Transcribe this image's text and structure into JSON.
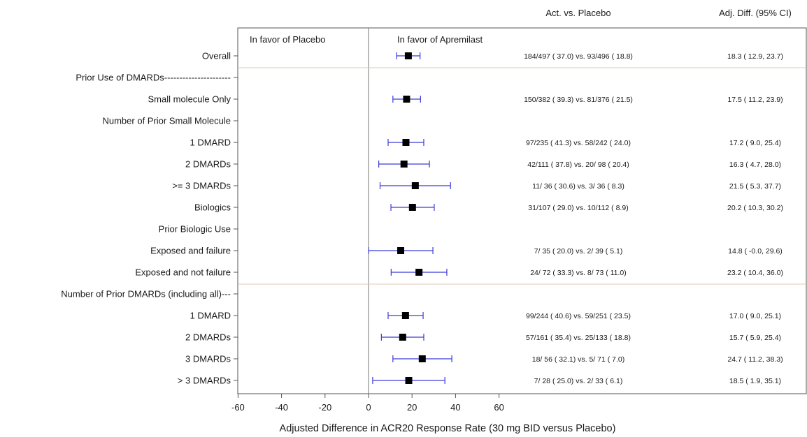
{
  "chart_data": {
    "type": "forest",
    "header_treatment_text": "Act. vs. Placebo",
    "header_diff_text": "Adj. Diff. (95% CI)",
    "favor_left": "In favor of Placebo",
    "favor_right": "In favor of Apremilast",
    "xlabel": "Adjusted Difference in ACR20 Response Rate (30 mg BID versus Placebo)",
    "xlim": [
      -63,
      70
    ],
    "xticks": [
      -60,
      -40,
      -20,
      0,
      20,
      40,
      60
    ],
    "xtick_labels": [
      "-60",
      "-40",
      "-20",
      "0",
      "20",
      "40",
      "60"
    ],
    "reference_line": 0,
    "colors": {
      "marker": "#000000",
      "ci_line": "#3a3ad8",
      "separator": "#e2c7b2",
      "axis": "#555555",
      "reference": "#777777"
    },
    "rows": [
      {
        "label": "Overall",
        "estimate": 18.3,
        "lower": 12.9,
        "upper": 23.7,
        "treatment_text": "184/497 ( 37.0) vs. 93/496 ( 18.8)",
        "diff_text": "18.3 ( 12.9, 23.7)"
      },
      {
        "label": "Prior Use of DMARDs----------------------",
        "separator_above": true
      },
      {
        "label": "Small molecule Only",
        "estimate": 17.5,
        "lower": 11.2,
        "upper": 23.9,
        "treatment_text": "150/382 ( 39.3) vs. 81/376 ( 21.5)",
        "diff_text": "17.5 ( 11.2, 23.9)"
      },
      {
        "label": "Number of Prior Small Molecule"
      },
      {
        "label": "1 DMARD",
        "estimate": 17.2,
        "lower": 9.0,
        "upper": 25.4,
        "treatment_text": "97/235 ( 41.3) vs. 58/242 ( 24.0)",
        "diff_text": "17.2 ( 9.0, 25.4)"
      },
      {
        "label": "2 DMARDs",
        "estimate": 16.3,
        "lower": 4.7,
        "upper": 28.0,
        "treatment_text": "42/111 ( 37.8) vs. 20/ 98 ( 20.4)",
        "diff_text": "16.3 ( 4.7, 28.0)"
      },
      {
        "label": ">= 3 DMARDs",
        "estimate": 21.5,
        "lower": 5.3,
        "upper": 37.7,
        "treatment_text": "11/ 36 ( 30.6) vs. 3/ 36 ( 8.3)",
        "diff_text": "21.5 ( 5.3, 37.7)"
      },
      {
        "label": "Biologics",
        "estimate": 20.2,
        "lower": 10.3,
        "upper": 30.2,
        "treatment_text": "31/107 ( 29.0) vs. 10/112 ( 8.9)",
        "diff_text": "20.2 ( 10.3, 30.2)"
      },
      {
        "label": "Prior Biologic Use"
      },
      {
        "label": "Exposed and failure",
        "estimate": 14.8,
        "lower": -0.0,
        "upper": 29.6,
        "treatment_text": "7/ 35 ( 20.0) vs. 2/ 39 ( 5.1)",
        "diff_text": "14.8 ( -0.0, 29.6)"
      },
      {
        "label": "Exposed and not failure",
        "estimate": 23.2,
        "lower": 10.4,
        "upper": 36.0,
        "treatment_text": "24/ 72 ( 33.3) vs. 8/ 73 ( 11.0)",
        "diff_text": "23.2 ( 10.4, 36.0)"
      },
      {
        "label": "Number of Prior DMARDs (including all)---",
        "separator_above": true
      },
      {
        "label": "1 DMARD",
        "estimate": 17.0,
        "lower": 9.0,
        "upper": 25.1,
        "treatment_text": "99/244 ( 40.6) vs. 59/251 ( 23.5)",
        "diff_text": "17.0 ( 9.0, 25.1)"
      },
      {
        "label": "2 DMARDs",
        "estimate": 15.7,
        "lower": 5.9,
        "upper": 25.4,
        "treatment_text": "57/161 ( 35.4) vs. 25/133 ( 18.8)",
        "diff_text": "15.7 ( 5.9, 25.4)"
      },
      {
        "label": "3 DMARDs",
        "estimate": 24.7,
        "lower": 11.2,
        "upper": 38.3,
        "treatment_text": "18/ 56 ( 32.1) vs. 5/ 71 ( 7.0)",
        "diff_text": "24.7 ( 11.2, 38.3)"
      },
      {
        "label": "> 3 DMARDs",
        "estimate": 18.5,
        "lower": 1.9,
        "upper": 35.1,
        "treatment_text": "7/ 28 ( 25.0) vs. 2/ 33 ( 6.1)",
        "diff_text": "18.5 ( 1.9, 35.1)"
      }
    ]
  }
}
